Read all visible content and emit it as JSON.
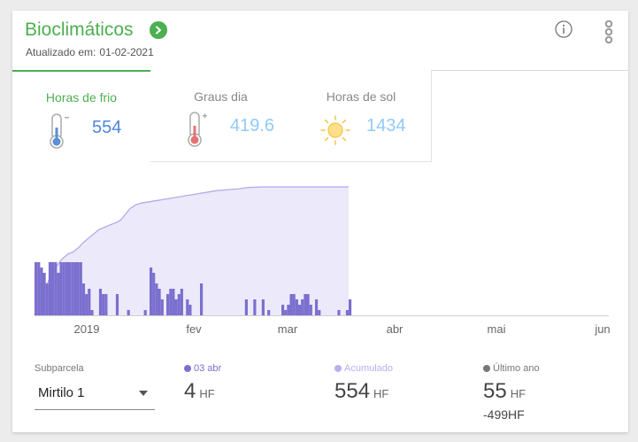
{
  "header": {
    "title": "Bioclimáticos",
    "updated_label": "Atualizado em:",
    "updated_date": "01-02-2021"
  },
  "tabs": [
    {
      "label": "Horas de frio",
      "value": "554",
      "icon": "cold-thermometer-icon",
      "active": true
    },
    {
      "label": "Graus dia",
      "value": "419.6",
      "icon": "hot-thermometer-icon",
      "active": false
    },
    {
      "label": "Horas de sol",
      "value": "1434",
      "icon": "sun-icon",
      "active": false
    }
  ],
  "colors": {
    "accent": "#4caf50",
    "bar": "#7b6fcf",
    "area_fill": "#ece9fb",
    "area_line": "#b4a9ec",
    "ultimo_ano": "#777777"
  },
  "chart_data": {
    "type": "bar",
    "x_ticks": [
      "2019",
      "fev",
      "mar",
      "abr",
      "mai",
      "jun"
    ],
    "series": [
      {
        "name": "03 abr",
        "type": "bar",
        "values": [
          10,
          10,
          9,
          8,
          6,
          10,
          10,
          10,
          8,
          10,
          10,
          10,
          10,
          10,
          10,
          10,
          10,
          6,
          4,
          5,
          1,
          0,
          0,
          5,
          4,
          4,
          0,
          0,
          0,
          4,
          0,
          0,
          0,
          1,
          0,
          0,
          0,
          0,
          0,
          1,
          0,
          9,
          8,
          6,
          5,
          3,
          0,
          4,
          5,
          5,
          3,
          4,
          5,
          0,
          3,
          2,
          0,
          0,
          0,
          6,
          0,
          0,
          0,
          0,
          0,
          0,
          0,
          0,
          0,
          0,
          0,
          0,
          0,
          0,
          0,
          3,
          0,
          0,
          3,
          0,
          0,
          3,
          0,
          1,
          0,
          0,
          0,
          0,
          2,
          1,
          2,
          4,
          4,
          3,
          2,
          3,
          4,
          4,
          2,
          0,
          3,
          1,
          0,
          0,
          0,
          0,
          0,
          0,
          1,
          0,
          0,
          1,
          3
        ]
      },
      {
        "name": "Acumulado",
        "type": "area",
        "values": [
          0,
          30,
          60,
          90,
          120,
          150,
          175,
          195,
          215,
          230,
          245,
          255,
          265,
          270,
          275,
          285,
          295,
          310,
          320,
          330,
          340,
          350,
          360,
          370,
          375,
          380,
          385,
          390,
          395,
          400,
          405,
          415,
          430,
          445,
          460,
          468,
          476,
          480,
          484,
          486,
          488,
          490,
          492,
          494,
          496,
          498,
          500,
          502,
          504,
          506,
          508,
          510,
          512,
          514,
          516,
          518,
          520,
          522,
          524,
          526,
          528,
          530,
          532,
          534,
          536,
          538,
          539,
          540,
          541,
          542,
          543,
          544,
          545,
          546,
          548,
          550,
          551,
          552,
          552,
          553,
          553,
          554,
          554,
          554,
          554,
          554,
          554,
          554,
          554,
          554,
          554,
          554,
          554,
          554,
          554,
          554,
          554,
          554,
          554,
          554,
          554,
          554,
          554,
          554,
          554,
          554,
          554,
          554,
          554,
          554,
          554,
          554,
          554
        ]
      }
    ],
    "ylim_bar": [
      0,
      10
    ],
    "ylim_area": [
      0,
      554
    ],
    "grid": false,
    "legend": "none"
  },
  "footer": {
    "subparcela_label": "Subparcela",
    "subparcela_value": "Mirtilo 1",
    "stats": [
      {
        "label": "03 abr",
        "value": "4",
        "unit": "HF",
        "dot_color": "#7b6fcf"
      },
      {
        "label": "Acumulado",
        "value": "554",
        "unit": "HF",
        "dot_color": "#b9aef0"
      },
      {
        "label": "Último ano",
        "value": "55",
        "unit": "HF",
        "dot_color": "#777777",
        "diff": "-499HF"
      }
    ]
  }
}
